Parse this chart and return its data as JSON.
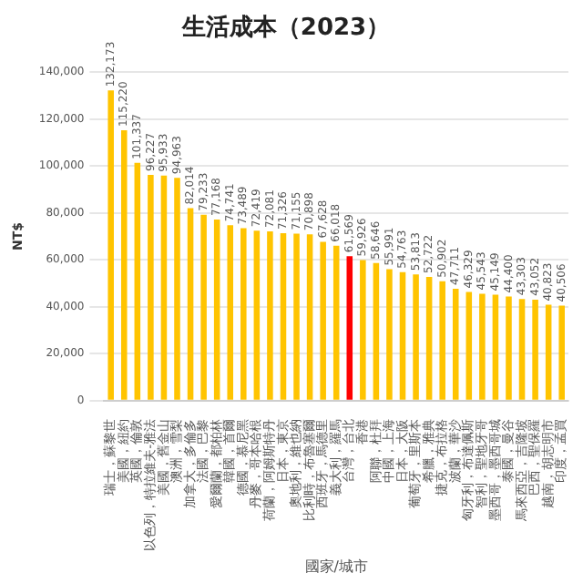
{
  "chart_data": {
    "type": "bar",
    "title": "生活成本（2023）",
    "xlabel": "國家/城市",
    "ylabel": "NT$",
    "categories": [
      "瑞士，蘇黎世",
      "美國，紐約",
      "英國，倫敦",
      "以色列，特拉維夫-雅法",
      "美國，舊金山",
      "澳洲，雪梨",
      "加拿大，多倫多",
      "法國，巴黎",
      "愛爾蘭，都柏林",
      "韓國，首爾",
      "德國，慕尼黑",
      "丹麥，哥本哈根",
      "荷蘭，阿姆斯特丹",
      "日本，東京",
      "奧地利，維也納",
      "比利時，布魯塞爾",
      "西班牙，馬德里",
      "義大利，羅馬",
      "台灣，台北",
      "香港",
      "阿聯，杜拜",
      "中國，上海",
      "日本，大阪",
      "葡萄牙，里斯本",
      "希臘，雅典",
      "捷克，布拉格",
      "波蘭，華沙",
      "匈牙利，布達佩斯",
      "智利，聖地牙哥",
      "墨西哥，墨西哥城",
      "泰國，曼谷",
      "馬來西亞，吉隆坡",
      "巴西，聖保羅",
      "越南，胡志明市",
      "印度，孟買"
    ],
    "values": [
      132173,
      115220,
      101337,
      96227,
      95933,
      94963,
      82014,
      79233,
      77168,
      74741,
      73489,
      72419,
      72081,
      71326,
      71155,
      70898,
      67628,
      66018,
      61569,
      59926,
      58646,
      55991,
      54763,
      53813,
      52722,
      50902,
      47711,
      46329,
      45543,
      45149,
      44400,
      43303,
      43052,
      40823,
      40506
    ],
    "colors": [
      "#ffc400",
      "#ffc400",
      "#ffc400",
      "#ffc400",
      "#ffc400",
      "#ffc400",
      "#ffc400",
      "#ffc400",
      "#ffc400",
      "#ffc400",
      "#ffc400",
      "#ffc400",
      "#ffc400",
      "#ffc400",
      "#ffc400",
      "#ffc400",
      "#ffc400",
      "#ffc400",
      "#ff0000",
      "#ffc400",
      "#ffc400",
      "#ffc400",
      "#ffc400",
      "#ffc400",
      "#ffc400",
      "#ffc400",
      "#ffc400",
      "#ffc400",
      "#ffc400",
      "#ffc400",
      "#ffc400",
      "#ffc400",
      "#ffc400",
      "#ffc400",
      "#ffc400"
    ],
    "value_labels": [
      "132,173",
      "115,220",
      "101,337",
      "96,227",
      "95,933",
      "94,963",
      "82,014",
      "79,233",
      "77,168",
      "74,741",
      "73,489",
      "72,419",
      "72,081",
      "71,326",
      "71,155",
      "70,898",
      "67,628",
      "66,018",
      "61,569",
      "59,926",
      "58,646",
      "55,991",
      "54,763",
      "53,813",
      "52,722",
      "50,902",
      "47,711",
      "46,329",
      "45,543",
      "45,149",
      "44,400",
      "43,303",
      "43,052",
      "40,823",
      "40,506"
    ],
    "ylim": [
      0,
      140000
    ],
    "yticks": [
      0,
      {
        "value": 20000,
        "label": "20,000"
      },
      {
        "value": 40000,
        "label": "40,000"
      },
      {
        "value": 60000,
        "label": "60,000"
      },
      {
        "value": 80000,
        "label": "80,000"
      },
      {
        "value": 100000,
        "label": "100,000"
      },
      {
        "value": 120000,
        "label": "120,000"
      },
      {
        "value": 140000,
        "label": "140,000"
      }
    ],
    "grid": "y"
  }
}
